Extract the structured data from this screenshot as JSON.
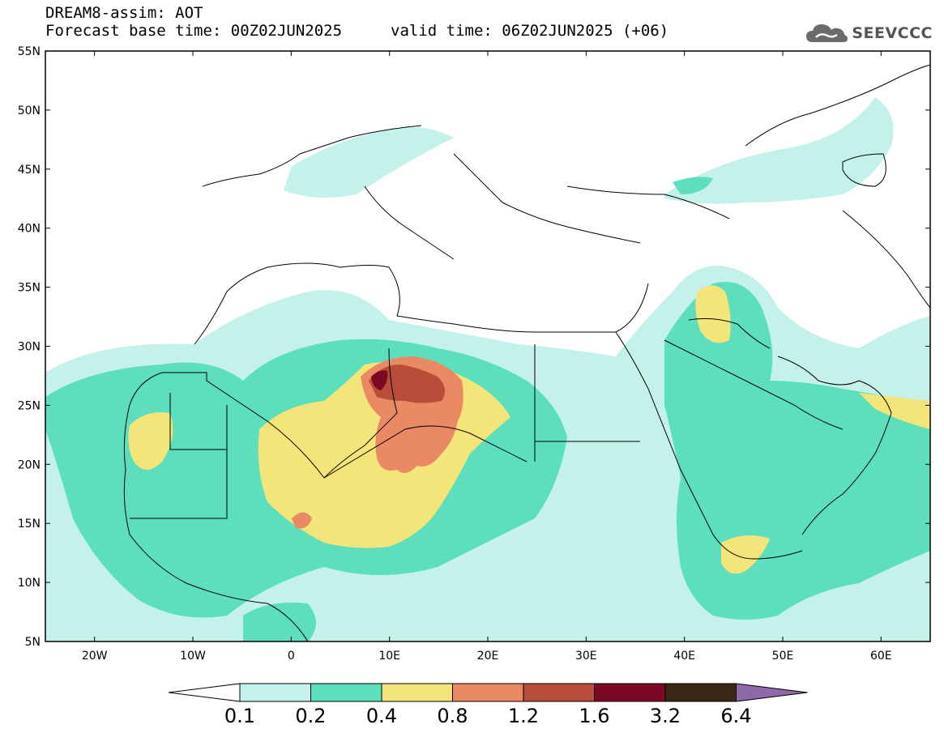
{
  "header": {
    "title": "DREAM8-assim: AOT",
    "base_time": "Forecast base time: 00Z02JUN2025",
    "valid_time": "valid time: 06Z02JUN2025 (+06)"
  },
  "logo": {
    "text": "SEEVCCC",
    "icon": "cloud-icon"
  },
  "map": {
    "variable": "AOT",
    "lon_range": [
      -25,
      65
    ],
    "lat_range": [
      5,
      55
    ],
    "lon_ticks": [
      "20W",
      "10W",
      "0",
      "10E",
      "20E",
      "30E",
      "40E",
      "50E",
      "60E"
    ],
    "lat_ticks": [
      "55N",
      "50N",
      "45N",
      "40N",
      "35N",
      "30N",
      "25N",
      "20N",
      "15N",
      "10N",
      "5N"
    ],
    "max_aot_location": "southwestern Libya / northern Niger border, around 27N 9E"
  },
  "colorbar": {
    "labels": [
      "0.1",
      "0.2",
      "0.4",
      "0.8",
      "1.2",
      "1.6",
      "3.2",
      "6.4"
    ],
    "colors": [
      "#c4f1ea",
      "#5ddfbd",
      "#f3e57a",
      "#e98a64",
      "#b84d3a",
      "#7c0824",
      "#3b2814",
      "#8f6aa8"
    ]
  }
}
